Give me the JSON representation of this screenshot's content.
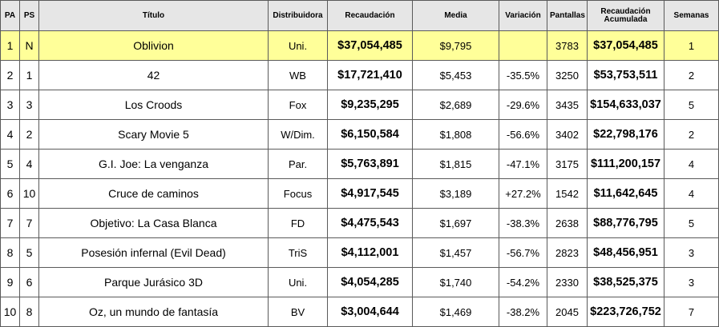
{
  "columns": {
    "pa": "PA",
    "ps": "PS",
    "title": "Título",
    "distributor": "Distribuidora",
    "gross": "Recaudación",
    "average": "Media",
    "change": "Variación",
    "screens": "Pantallas",
    "cumulative_line1": "Recaudación",
    "cumulative_line2": "Acumulada",
    "weeks": "Semanas"
  },
  "highlight_color": "#ffff99",
  "header_color": "#e6e6e6",
  "rows": [
    {
      "pa": "1",
      "ps": "N",
      "title": "Oblivion",
      "distributor": "Uni.",
      "gross": "$37,054,485",
      "average": "$9,795",
      "change": "",
      "screens": "3783",
      "cumulative": "$37,054,485",
      "weeks": "1"
    },
    {
      "pa": "2",
      "ps": "1",
      "title": "42",
      "distributor": "WB",
      "gross": "$17,721,410",
      "average": "$5,453",
      "change": "-35.5%",
      "screens": "3250",
      "cumulative": "$53,753,511",
      "weeks": "2"
    },
    {
      "pa": "3",
      "ps": "3",
      "title": "Los Croods",
      "distributor": "Fox",
      "gross": "$9,235,295",
      "average": "$2,689",
      "change": "-29.6%",
      "screens": "3435",
      "cumulative": "$154,633,037",
      "weeks": "5"
    },
    {
      "pa": "4",
      "ps": "2",
      "title": "Scary Movie 5",
      "distributor": "W/Dim.",
      "gross": "$6,150,584",
      "average": "$1,808",
      "change": "-56.6%",
      "screens": "3402",
      "cumulative": "$22,798,176",
      "weeks": "2"
    },
    {
      "pa": "5",
      "ps": "4",
      "title": "G.I. Joe: La venganza",
      "distributor": "Par.",
      "gross": "$5,763,891",
      "average": "$1,815",
      "change": "-47.1%",
      "screens": "3175",
      "cumulative": "$111,200,157",
      "weeks": "4"
    },
    {
      "pa": "6",
      "ps": "10",
      "title": "Cruce de caminos",
      "distributor": "Focus",
      "gross": "$4,917,545",
      "average": "$3,189",
      "change": "+27.2%",
      "screens": "1542",
      "cumulative": "$11,642,645",
      "weeks": "4"
    },
    {
      "pa": "7",
      "ps": "7",
      "title": "Objetivo: La Casa Blanca",
      "distributor": "FD",
      "gross": "$4,475,543",
      "average": "$1,697",
      "change": "-38.3%",
      "screens": "2638",
      "cumulative": "$88,776,795",
      "weeks": "5"
    },
    {
      "pa": "8",
      "ps": "5",
      "title": "Posesión infernal (Evil Dead)",
      "distributor": "TriS",
      "gross": "$4,112,001",
      "average": "$1,457",
      "change": "-56.7%",
      "screens": "2823",
      "cumulative": "$48,456,951",
      "weeks": "3"
    },
    {
      "pa": "9",
      "ps": "6",
      "title": "Parque Jurásico 3D",
      "distributor": "Uni.",
      "gross": "$4,054,285",
      "average": "$1,740",
      "change": "-54.2%",
      "screens": "2330",
      "cumulative": "$38,525,375",
      "weeks": "3"
    },
    {
      "pa": "10",
      "ps": "8",
      "title": "Oz, un mundo de fantasía",
      "distributor": "BV",
      "gross": "$3,004,644",
      "average": "$1,469",
      "change": "-38.2%",
      "screens": "2045",
      "cumulative": "$223,726,752",
      "weeks": "7"
    }
  ]
}
